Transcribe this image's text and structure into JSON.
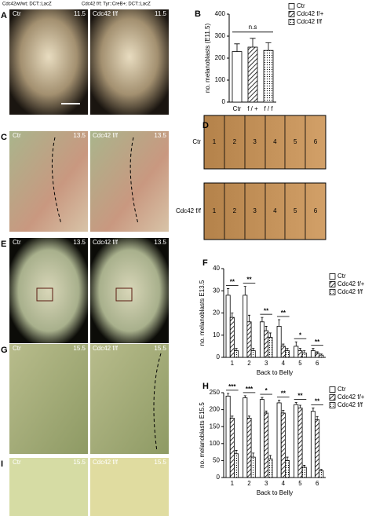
{
  "header": {
    "left": "Cdc42wt/wt; DCT::LacZ",
    "right": "Cdc42 f/f; Tyr::CreB+; DCT::LacZ"
  },
  "panels": {
    "A": {
      "letter": "A",
      "left_label": "Ctr",
      "right_label": "Cdc42 f/f",
      "stage": "11.5"
    },
    "C": {
      "letter": "C",
      "left_label": "Ctr",
      "right_label": "Cdc42 f/f",
      "stage": "13.5"
    },
    "E": {
      "letter": "E",
      "left_label": "Ctr",
      "right_label": "Cdc42 f/f",
      "stage": "13.5"
    },
    "G": {
      "letter": "G",
      "left_label": "Ctr",
      "right_label": "Cdc42 f/f",
      "stage": "15.5"
    },
    "I": {
      "letter": "I",
      "left_label": "Ctr",
      "right_label": "Cdc42 f/f",
      "stage": "15.5"
    },
    "B": {
      "letter": "B"
    },
    "F": {
      "letter": "F"
    },
    "H": {
      "letter": "H"
    },
    "D": {
      "letter": "D",
      "rows": [
        {
          "label": "Ctr",
          "fields": [
            "1",
            "2",
            "3",
            "4",
            "5",
            "6"
          ]
        },
        {
          "label": "Cdc42 f/f",
          "fields": [
            "1",
            "2",
            "3",
            "4",
            "5",
            "6"
          ]
        }
      ]
    }
  },
  "chart_data": [
    {
      "type": "bar",
      "y_label": "no. melanoblasts (E11.5)",
      "categories": [
        "Ctr",
        "f / +",
        "f / f"
      ],
      "values": [
        230,
        250,
        235
      ],
      "errors": [
        35,
        40,
        35
      ],
      "fill": [
        "white",
        "hatch",
        "dots"
      ],
      "legend": [
        "Ctr",
        "Cdc42 f/+",
        "Cdc42 f/f"
      ],
      "annotation": "n.s",
      "ylim": [
        0,
        400
      ],
      "yticks": [
        0,
        100,
        200,
        300,
        400
      ]
    },
    {
      "type": "bar",
      "y_label": "no. melanoblasts E13.5",
      "x_label": "Back to Belly",
      "categories": [
        "1",
        "2",
        "3",
        "4",
        "5",
        "6"
      ],
      "series": [
        {
          "name": "Ctr",
          "fill": "white",
          "values": [
            28,
            28,
            16,
            14,
            5,
            3
          ],
          "errors": [
            3,
            4,
            2,
            3,
            2,
            1
          ]
        },
        {
          "name": "Cdc42 f/+",
          "fill": "hatch",
          "values": [
            18,
            16,
            12,
            5,
            3,
            2
          ],
          "errors": [
            2,
            3,
            2,
            1,
            1,
            0.5
          ]
        },
        {
          "name": "Cdc42 f/f",
          "fill": "dots",
          "values": [
            3,
            3,
            9,
            3,
            2,
            1
          ],
          "errors": [
            1,
            1,
            2,
            1,
            1,
            0.5
          ]
        }
      ],
      "annotations": [
        "**",
        "**",
        "**",
        "**",
        "*",
        "**"
      ],
      "ylim": [
        0,
        40
      ],
      "yticks": [
        0,
        10,
        20,
        30,
        40
      ]
    },
    {
      "type": "bar",
      "y_label": "no. melanoblasts E15.5",
      "x_label": "Back to Belly",
      "categories": [
        "1",
        "2",
        "3",
        "4",
        "5",
        "6"
      ],
      "series": [
        {
          "name": "Ctr",
          "fill": "white",
          "values": [
            240,
            235,
            230,
            220,
            215,
            195
          ],
          "errors": [
            8,
            6,
            6,
            8,
            6,
            10
          ]
        },
        {
          "name": "Cdc42 f/+",
          "fill": "hatch",
          "values": [
            175,
            175,
            190,
            190,
            205,
            170
          ],
          "errors": [
            6,
            6,
            6,
            8,
            8,
            10
          ]
        },
        {
          "name": "Cdc42 f/f",
          "fill": "dots",
          "values": [
            70,
            60,
            55,
            50,
            30,
            20
          ],
          "errors": [
            10,
            12,
            10,
            10,
            6,
            4
          ]
        }
      ],
      "annotations": [
        "***",
        "***",
        "*",
        "**",
        "**",
        "**"
      ],
      "ylim": [
        0,
        250
      ],
      "yticks": [
        0,
        50,
        100,
        150,
        200,
        250
      ]
    }
  ]
}
